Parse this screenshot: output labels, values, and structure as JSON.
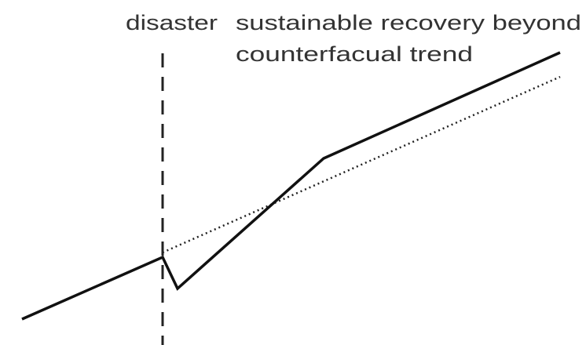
{
  "labels": {
    "event": "disaster",
    "outcome": [
      "sustainable recovery beyond",
      "counterfacual trend"
    ]
  }
}
